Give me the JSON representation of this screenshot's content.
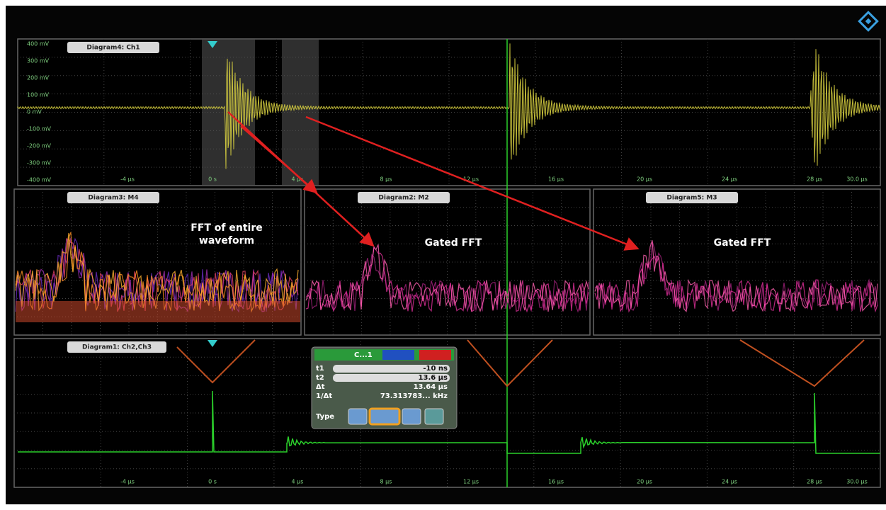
{
  "diagrams": [
    {
      "title": "Diagram4: Ch1",
      "y_labels": [
        "400 mV",
        "300 mV",
        "200 mV",
        "100 mV",
        "0 mV",
        "-100 mV",
        "-200 mV",
        "-300 mV",
        "-400 mV"
      ],
      "x_labels": [
        "-4 µs",
        "0 s",
        "4 µs",
        "8 µs",
        "12 µs",
        "16 µs",
        "20 µs",
        "24 µs",
        "28 µs",
        "30.0 µs"
      ]
    },
    {
      "title": "Diagram3: M4"
    },
    {
      "title": "Diagram2: M2"
    },
    {
      "title": "Diagram5: M3"
    },
    {
      "title": "Diagram1: Ch2,Ch3",
      "x_labels": [
        "-4 µs",
        "0 s",
        "4 µs",
        "8 µs",
        "12 µs",
        "16 µs",
        "20 µs",
        "24 µs",
        "28 µs",
        "30.0 µs"
      ]
    }
  ],
  "annotations": [
    "FFT of entire waveform",
    "Gated FFT",
    "Gated FFT"
  ],
  "cursor_dialog": {
    "title": "C...1",
    "rows": [
      {
        "label": "t1",
        "value": "-10 ns"
      },
      {
        "label": "t2",
        "value": "13.6 µs"
      },
      {
        "label": "Δt",
        "value": "13.64 µs"
      },
      {
        "label": "1/Δt",
        "value": "73.313783... kHz"
      }
    ],
    "type_label": "Type"
  }
}
